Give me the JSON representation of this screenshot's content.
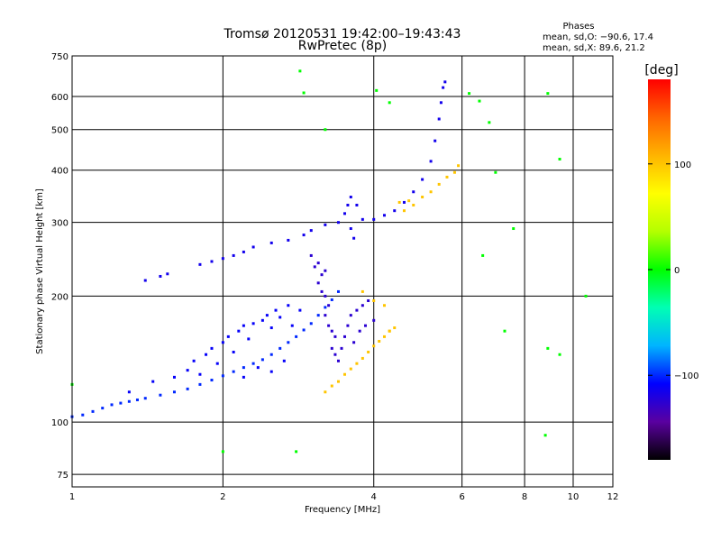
{
  "chart_data": {
    "type": "scatter",
    "title": "Tromsø 20120531 19:42:00–19:43:43",
    "subtitle": "RwPretec (8p)",
    "xlabel": "Frequency [MHz]",
    "ylabel": "Stationary phase Virtual Height [km]",
    "x_scale": "log",
    "y_scale": "log",
    "xlim": [
      1,
      12
    ],
    "ylim": [
      70,
      750
    ],
    "x_ticks": [
      1,
      2,
      4,
      6,
      8,
      10,
      12
    ],
    "y_ticks": [
      75,
      100,
      200,
      300,
      400,
      500,
      600,
      750
    ],
    "grid": true,
    "phase_stats": {
      "heading": "Phases",
      "line_o": "mean, sd,O: −90.6, 17.4",
      "line_x": "mean, sd,X:  89.6, 21.2"
    },
    "colorbar": {
      "label": "[deg]",
      "range": [
        -180,
        180
      ],
      "ticks": [
        100,
        0,
        -100
      ],
      "tick_labels": [
        "100",
        "0",
        "−100"
      ],
      "stops": [
        "#000000",
        "#5a00a0",
        "#0000ff",
        "#00b4ff",
        "#00ffb4",
        "#00ff00",
        "#b4ff00",
        "#ffff00",
        "#ffb400",
        "#ff6400",
        "#ff0000"
      ]
    },
    "series": [
      {
        "trace": "o-mode lower",
        "phase": -100,
        "points": [
          [
            1.0,
            103
          ],
          [
            1.05,
            104
          ],
          [
            1.1,
            106
          ],
          [
            1.15,
            108
          ],
          [
            1.2,
            110
          ],
          [
            1.25,
            111
          ],
          [
            1.3,
            112
          ],
          [
            1.35,
            113
          ],
          [
            1.4,
            114
          ],
          [
            1.5,
            116
          ],
          [
            1.6,
            118
          ],
          [
            1.7,
            120
          ],
          [
            1.8,
            123
          ],
          [
            1.9,
            126
          ],
          [
            2.0,
            129
          ],
          [
            2.1,
            132
          ],
          [
            2.2,
            135
          ],
          [
            2.3,
            138
          ],
          [
            2.4,
            141
          ],
          [
            2.5,
            145
          ],
          [
            2.6,
            150
          ],
          [
            2.7,
            155
          ],
          [
            2.8,
            160
          ],
          [
            2.9,
            166
          ],
          [
            3.0,
            172
          ],
          [
            3.1,
            180
          ],
          [
            3.2,
            188
          ],
          [
            3.3,
            196
          ],
          [
            3.4,
            205
          ]
        ]
      },
      {
        "trace": "o-mode lower scatter",
        "phase": -110,
        "points": [
          [
            1.3,
            118
          ],
          [
            1.45,
            125
          ],
          [
            1.6,
            128
          ],
          [
            1.7,
            133
          ],
          [
            1.75,
            140
          ],
          [
            1.85,
            145
          ],
          [
            1.9,
            150
          ],
          [
            2.0,
            155
          ],
          [
            2.05,
            160
          ],
          [
            2.1,
            147
          ],
          [
            2.15,
            165
          ],
          [
            2.2,
            170
          ],
          [
            2.25,
            158
          ],
          [
            2.3,
            172
          ],
          [
            2.4,
            175
          ],
          [
            2.45,
            180
          ],
          [
            2.5,
            168
          ],
          [
            2.55,
            185
          ],
          [
            2.6,
            178
          ],
          [
            2.7,
            190
          ],
          [
            2.75,
            170
          ],
          [
            2.85,
            185
          ],
          [
            2.2,
            128
          ],
          [
            2.35,
            135
          ],
          [
            2.5,
            132
          ],
          [
            2.65,
            140
          ],
          [
            1.95,
            138
          ],
          [
            1.8,
            130
          ]
        ]
      },
      {
        "trace": "o-mode upper band",
        "phase": -125,
        "points": [
          [
            3.0,
            250
          ],
          [
            3.05,
            235
          ],
          [
            3.1,
            240
          ],
          [
            3.15,
            225
          ],
          [
            3.2,
            230
          ],
          [
            3.1,
            215
          ],
          [
            3.15,
            205
          ],
          [
            3.2,
            200
          ],
          [
            3.25,
            190
          ],
          [
            3.2,
            180
          ],
          [
            3.25,
            170
          ],
          [
            3.3,
            165
          ],
          [
            3.35,
            160
          ],
          [
            3.3,
            150
          ],
          [
            3.35,
            145
          ],
          [
            3.4,
            140
          ],
          [
            3.45,
            150
          ],
          [
            3.5,
            160
          ],
          [
            3.55,
            170
          ],
          [
            3.6,
            180
          ],
          [
            3.7,
            185
          ],
          [
            3.8,
            190
          ],
          [
            3.9,
            195
          ],
          [
            4.0,
            175
          ],
          [
            3.65,
            155
          ],
          [
            3.75,
            165
          ],
          [
            3.85,
            170
          ]
        ]
      },
      {
        "trace": "F-region o-trace",
        "phase": -115,
        "points": [
          [
            1.4,
            218
          ],
          [
            1.5,
            223
          ],
          [
            1.55,
            226
          ],
          [
            1.8,
            238
          ],
          [
            1.9,
            242
          ],
          [
            2.0,
            246
          ],
          [
            2.1,
            250
          ],
          [
            2.2,
            255
          ],
          [
            2.3,
            262
          ],
          [
            2.5,
            268
          ],
          [
            2.7,
            272
          ],
          [
            2.9,
            280
          ],
          [
            3.0,
            287
          ],
          [
            3.2,
            296
          ],
          [
            3.4,
            300
          ],
          [
            3.5,
            315
          ],
          [
            3.55,
            330
          ],
          [
            3.6,
            345
          ],
          [
            3.7,
            330
          ],
          [
            3.6,
            290
          ],
          [
            3.65,
            275
          ],
          [
            3.8,
            305
          ],
          [
            4.0,
            305
          ],
          [
            4.2,
            312
          ],
          [
            4.4,
            320
          ],
          [
            4.6,
            335
          ],
          [
            4.8,
            355
          ],
          [
            5.0,
            380
          ],
          [
            5.2,
            420
          ],
          [
            5.3,
            470
          ],
          [
            5.4,
            530
          ],
          [
            5.45,
            580
          ],
          [
            5.5,
            630
          ],
          [
            5.55,
            650
          ]
        ]
      },
      {
        "trace": "x-mode",
        "phase": 100,
        "points": [
          [
            3.2,
            118
          ],
          [
            3.3,
            122
          ],
          [
            3.4,
            125
          ],
          [
            3.5,
            130
          ],
          [
            3.6,
            134
          ],
          [
            3.7,
            138
          ],
          [
            3.8,
            142
          ],
          [
            3.9,
            147
          ],
          [
            4.0,
            152
          ],
          [
            4.1,
            156
          ],
          [
            4.2,
            160
          ],
          [
            4.3,
            165
          ],
          [
            3.8,
            205
          ],
          [
            4.0,
            195
          ],
          [
            4.2,
            190
          ],
          [
            4.3,
            165
          ],
          [
            4.4,
            168
          ],
          [
            4.6,
            320
          ],
          [
            4.8,
            330
          ],
          [
            5.0,
            345
          ],
          [
            5.2,
            355
          ],
          [
            5.4,
            370
          ],
          [
            5.6,
            385
          ],
          [
            5.8,
            395
          ],
          [
            5.9,
            410
          ],
          [
            4.5,
            335
          ],
          [
            4.7,
            338
          ]
        ]
      },
      {
        "trace": "sporadic points",
        "phase": 0,
        "points": [
          [
            1.0,
            123
          ],
          [
            2.0,
            85
          ],
          [
            2.8,
            85
          ],
          [
            2.85,
            690
          ],
          [
            2.9,
            612
          ],
          [
            3.2,
            500
          ],
          [
            4.05,
            620
          ],
          [
            4.3,
            580
          ],
          [
            6.2,
            610
          ],
          [
            6.5,
            585
          ],
          [
            6.8,
            520
          ],
          [
            7.0,
            395
          ],
          [
            7.6,
            290
          ],
          [
            8.9,
            610
          ],
          [
            9.4,
            425
          ],
          [
            10.6,
            200
          ],
          [
            6.6,
            250
          ],
          [
            7.3,
            165
          ],
          [
            8.8,
            93
          ],
          [
            8.9,
            150
          ],
          [
            9.4,
            145
          ]
        ]
      }
    ]
  }
}
